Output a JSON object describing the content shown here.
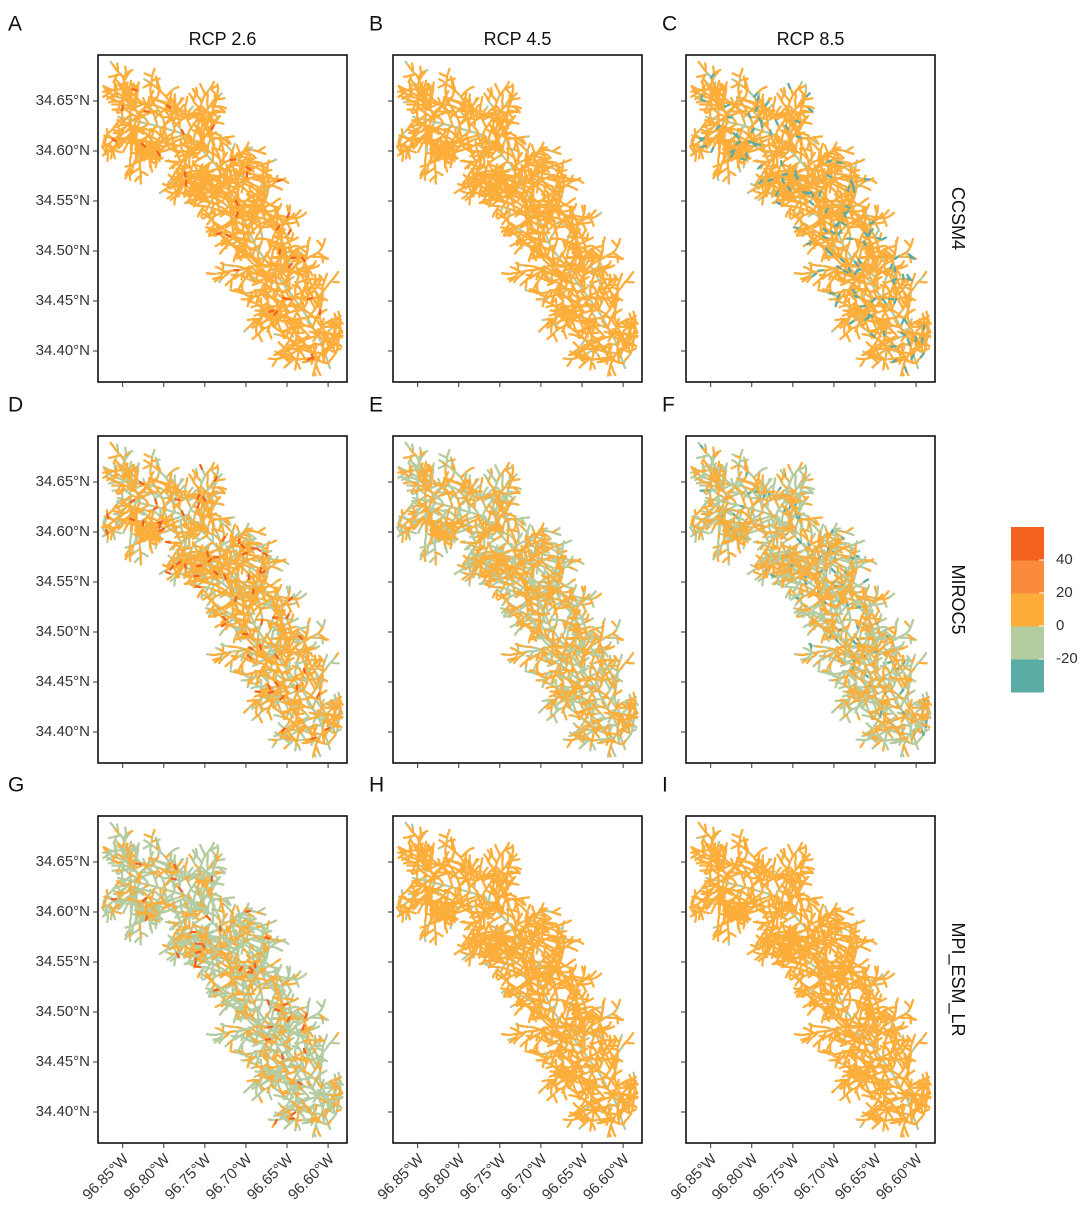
{
  "panel_labels": [
    "A",
    "B",
    "C",
    "D",
    "E",
    "F",
    "G",
    "H",
    "I"
  ],
  "column_titles": [
    "RCP 2.6",
    "RCP 4.5",
    "RCP 8.5"
  ],
  "row_titles": [
    "CCSM4",
    "MIROC5",
    "MPI_ESM_LR"
  ],
  "chart_data": {
    "type": "map",
    "xlim": [
      -96.88,
      -96.577
    ],
    "ylim": [
      34.369,
      34.696
    ],
    "xticks": [
      {
        "value": -96.85,
        "label": "96.85°W"
      },
      {
        "value": -96.8,
        "label": "96.80°W"
      },
      {
        "value": -96.75,
        "label": "96.75°W"
      },
      {
        "value": -96.7,
        "label": "96.70°W"
      },
      {
        "value": -96.65,
        "label": "96.65°W"
      },
      {
        "value": -96.6,
        "label": "96.60°W"
      }
    ],
    "yticks": [
      {
        "value": 34.4,
        "label": "34.40°N"
      },
      {
        "value": 34.45,
        "label": "34.45°N"
      },
      {
        "value": 34.5,
        "label": "34.50°N"
      },
      {
        "value": 34.55,
        "label": "34.55°N"
      },
      {
        "value": 34.6,
        "label": "34.60°N"
      },
      {
        "value": 34.65,
        "label": "34.65°N"
      }
    ]
  },
  "legend": {
    "lim": [
      -40,
      60
    ],
    "ticks": [
      40,
      20,
      0,
      -20
    ],
    "colors": [
      "#5aaca4",
      "#b5cba0",
      "#fdad3a",
      "#f98b3a",
      "#f4621f"
    ]
  }
}
